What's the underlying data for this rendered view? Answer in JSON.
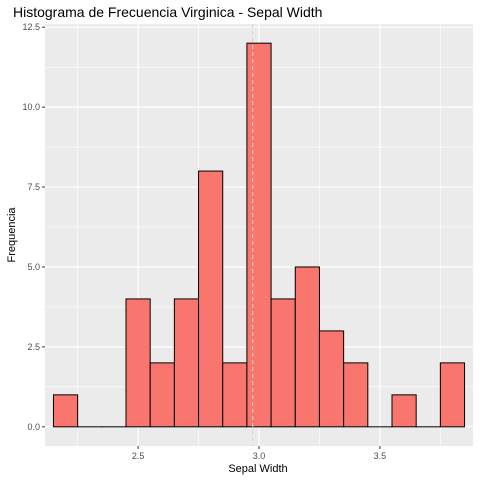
{
  "chart_data": {
    "type": "bar",
    "title": "Histograma de Frecuencia Virginica - Sepal Width",
    "xlabel": "Sepal Width",
    "ylabel": "Frequencia",
    "bin_width": 0.1,
    "bins": [
      {
        "center": 2.2,
        "count": 1
      },
      {
        "center": 2.3,
        "count": 0
      },
      {
        "center": 2.4,
        "count": 0
      },
      {
        "center": 2.5,
        "count": 4
      },
      {
        "center": 2.6,
        "count": 2
      },
      {
        "center": 2.7,
        "count": 4
      },
      {
        "center": 2.8,
        "count": 8
      },
      {
        "center": 2.9,
        "count": 2
      },
      {
        "center": 3.0,
        "count": 12
      },
      {
        "center": 3.1,
        "count": 4
      },
      {
        "center": 3.2,
        "count": 5
      },
      {
        "center": 3.3,
        "count": 3
      },
      {
        "center": 3.4,
        "count": 2
      },
      {
        "center": 3.5,
        "count": 0
      },
      {
        "center": 3.6,
        "count": 1
      },
      {
        "center": 3.7,
        "count": 0
      },
      {
        "center": 3.8,
        "count": 2
      }
    ],
    "xlim": [
      2.115,
      3.885
    ],
    "ylim": [
      -0.6,
      12.6
    ],
    "x_ticks": [
      "2.5",
      "3.0",
      "3.5"
    ],
    "y_ticks": [
      "0.0",
      "2.5",
      "5.0",
      "7.5",
      "10.0",
      "12.5"
    ],
    "reference_line_x": 2.974,
    "grid": true,
    "colors": {
      "panel": "#ebebeb",
      "grid": "#ffffff",
      "bar_fill": "#f8766d",
      "bar_stroke": "#000000",
      "reference_line": "#d3d3d3"
    }
  }
}
